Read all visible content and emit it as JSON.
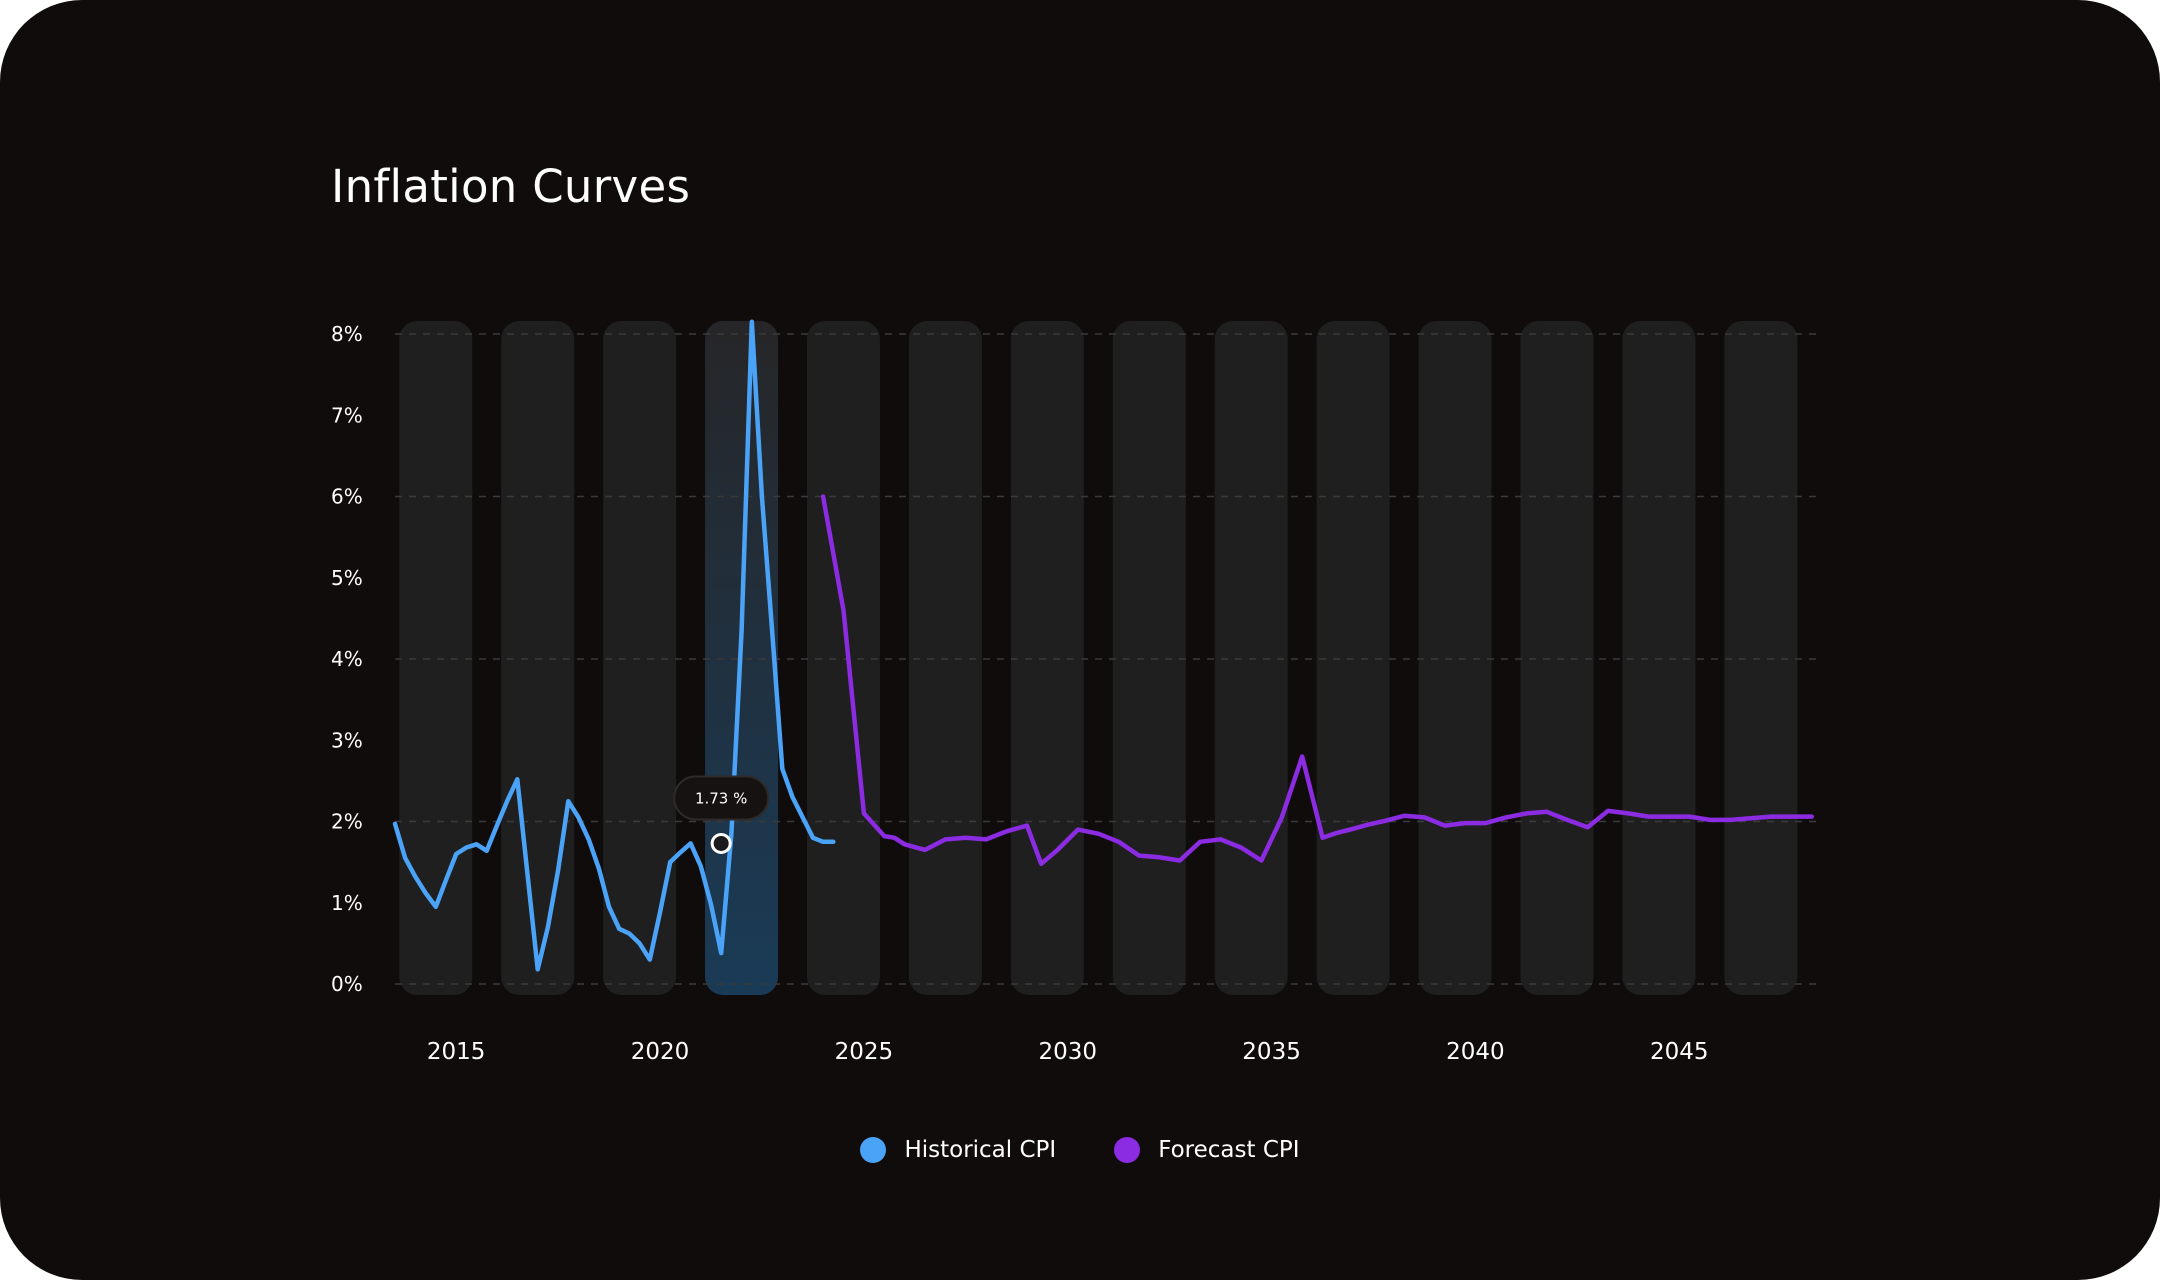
{
  "chart_data": {
    "type": "line",
    "title": "Inflation Curves",
    "xlabel": "",
    "ylabel": "",
    "y_ticks": [
      "0%",
      "1%",
      "2%",
      "3%",
      "4%",
      "5%",
      "6%",
      "7%",
      "8%"
    ],
    "ylim": [
      0,
      8
    ],
    "xlim": [
      2014,
      2049
    ],
    "x_ticks": [
      {
        "year": 2015,
        "label": "2015"
      },
      {
        "year": 2020,
        "label": "2020"
      },
      {
        "year": 2025,
        "label": "2025"
      },
      {
        "year": 2030,
        "label": "2030"
      },
      {
        "year": 2035,
        "label": "2035"
      },
      {
        "year": 2040,
        "label": "2040"
      },
      {
        "year": 2045,
        "label": "2045"
      }
    ],
    "band_years": [
      2015,
      2017.5,
      2020,
      2022.5,
      2025,
      2027.5,
      2030,
      2032.5,
      2035,
      2037.5,
      2040,
      2042.5,
      2045,
      2047.5
    ],
    "highlight_band_year": 2022.5,
    "series": [
      {
        "name": "Historical CPI",
        "color": "#4aa3f7",
        "x": [
          2014.0,
          2014.25,
          2014.5,
          2014.75,
          2015.0,
          2015.25,
          2015.5,
          2015.75,
          2016.0,
          2016.25,
          2016.5,
          2016.75,
          2017.0,
          2017.25,
          2017.5,
          2017.75,
          2018.0,
          2018.25,
          2018.5,
          2018.75,
          2019.0,
          2019.25,
          2019.5,
          2019.75,
          2020.0,
          2020.25,
          2020.5,
          2020.75,
          2021.0,
          2021.25,
          2021.5,
          2021.75,
          2022.0,
          2022.25,
          2022.5,
          2022.75,
          2023.0,
          2023.25,
          2023.5,
          2023.75,
          2024.0,
          2024.25,
          2024.5,
          2024.75
        ],
        "y": [
          1.97,
          1.55,
          1.32,
          1.12,
          0.95,
          1.28,
          1.6,
          1.68,
          1.72,
          1.64,
          1.95,
          2.25,
          2.52,
          1.35,
          0.18,
          0.7,
          1.4,
          2.25,
          2.05,
          1.78,
          1.42,
          0.95,
          0.68,
          0.62,
          0.5,
          0.3,
          0.88,
          1.5,
          1.62,
          1.73,
          1.45,
          0.98,
          0.38,
          1.85,
          4.35,
          8.15,
          6.0,
          4.35,
          2.65,
          2.3,
          2.05,
          1.8,
          1.75,
          1.75
        ],
        "cutoff": 2024.5
      },
      {
        "name": "Forecast CPI",
        "color": "#8b2be2",
        "x": [
          2024.5,
          2025.0,
          2025.5,
          2026.0,
          2026.25,
          2026.5,
          2027.0,
          2027.5,
          2028.0,
          2028.5,
          2029.0,
          2029.5,
          2029.85,
          2030.25,
          2030.75,
          2031.25,
          2031.75,
          2032.25,
          2032.75,
          2033.25,
          2033.75,
          2034.25,
          2034.75,
          2035.25,
          2035.75,
          2036.25,
          2036.75,
          2037.1,
          2037.5,
          2037.85,
          2038.3,
          2038.75,
          2039.25,
          2039.75,
          2040.25,
          2040.75,
          2041.25,
          2041.75,
          2042.25,
          2042.75,
          2043.25,
          2043.75,
          2044.25,
          2044.75,
          2045.25,
          2045.75,
          2046.25,
          2046.75,
          2047.25,
          2047.75,
          2048.25,
          2048.75
        ],
        "y": [
          6.0,
          4.6,
          2.1,
          1.82,
          1.8,
          1.72,
          1.65,
          1.78,
          1.8,
          1.78,
          1.88,
          1.95,
          1.48,
          1.65,
          1.9,
          1.85,
          1.75,
          1.58,
          1.56,
          1.52,
          1.75,
          1.78,
          1.68,
          1.52,
          2.05,
          2.8,
          1.8,
          1.86,
          1.91,
          1.96,
          2.01,
          2.07,
          2.05,
          1.95,
          1.98,
          1.98,
          2.05,
          2.1,
          2.12,
          2.02,
          1.93,
          2.13,
          2.1,
          2.06,
          2.06,
          2.06,
          2.02,
          2.02,
          2.04,
          2.06,
          2.06,
          2.06
        ]
      }
    ],
    "tooltip": {
      "x": 2022.0,
      "y": 1.73,
      "label": "1.73 %"
    }
  }
}
